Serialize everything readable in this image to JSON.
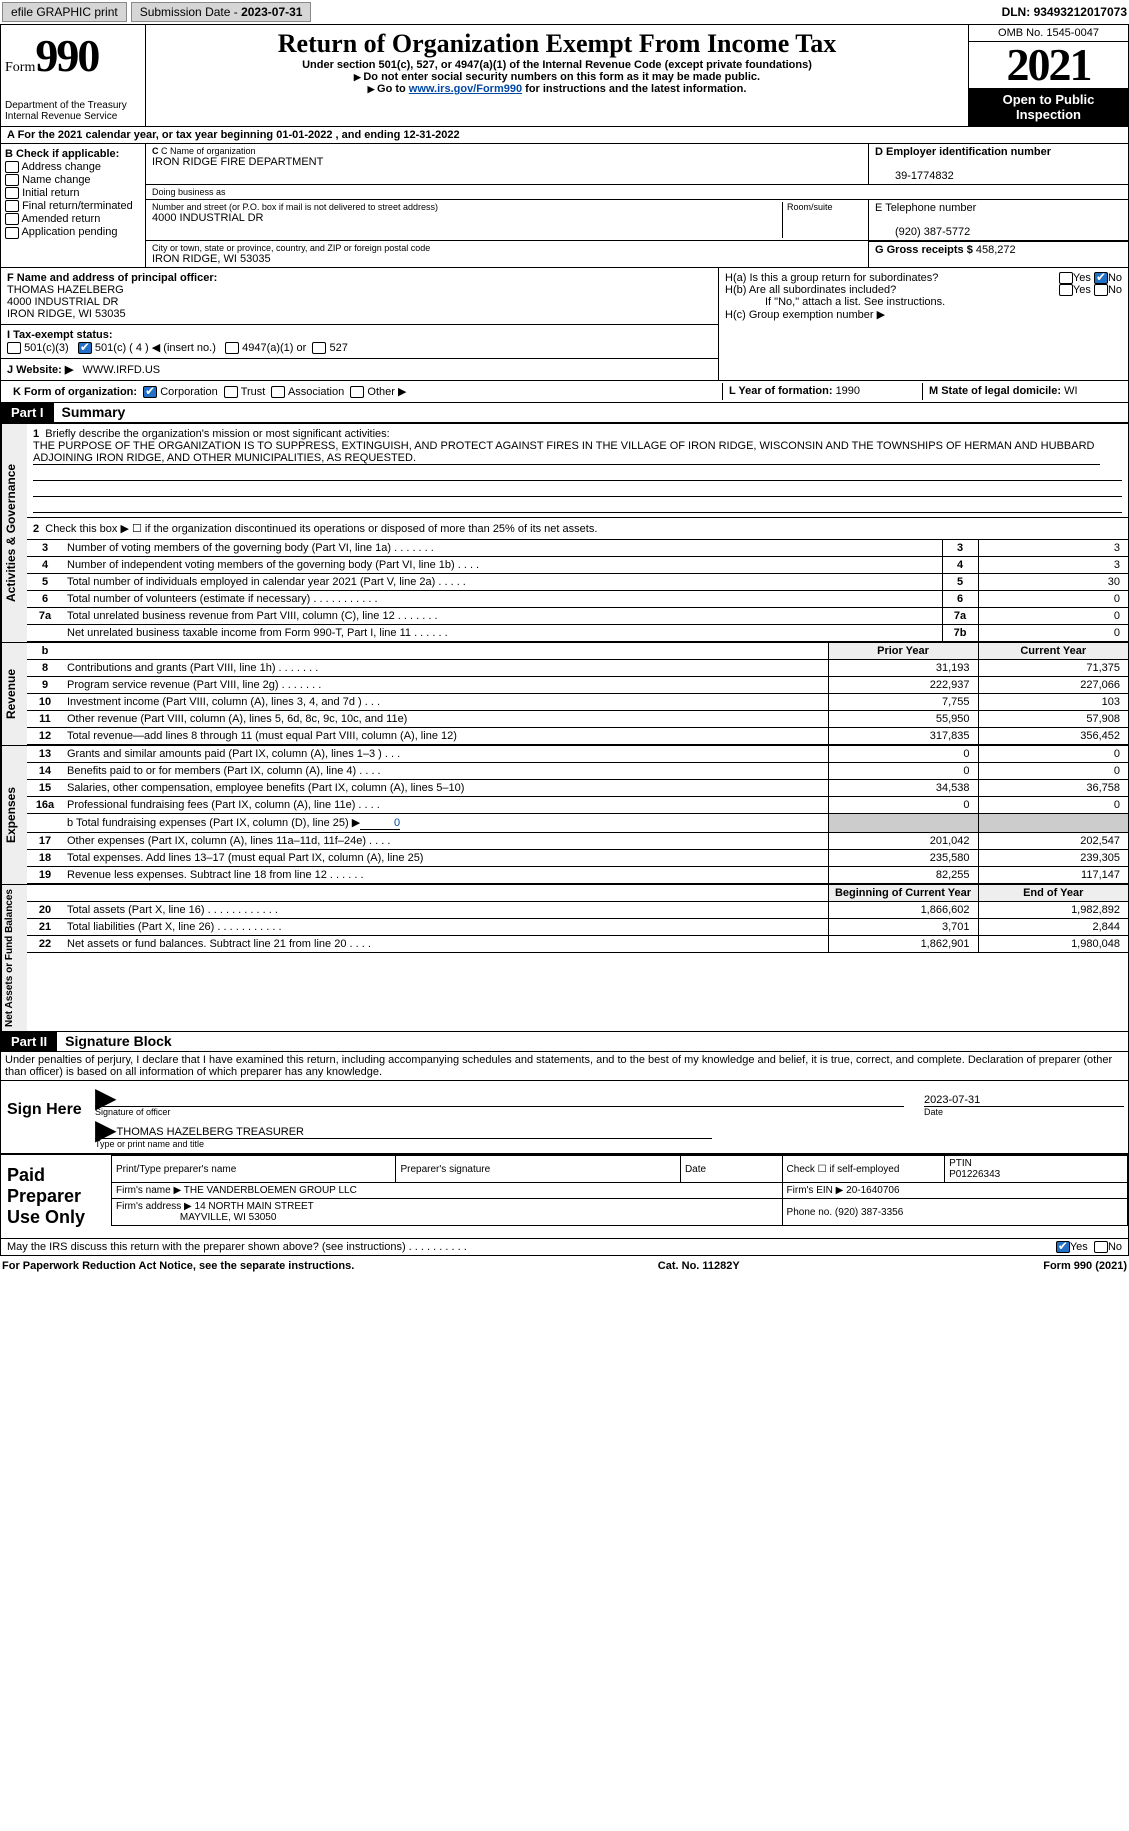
{
  "topbar": {
    "efile": "efile GRAPHIC print",
    "subdate_label": "Submission Date - ",
    "subdate": "2023-07-31",
    "dln_label": "DLN: ",
    "dln": "93493212017073"
  },
  "header": {
    "form_word": "Form",
    "form_num": "990",
    "dept": "Department of the Treasury\nInternal Revenue Service",
    "title": "Return of Organization Exempt From Income Tax",
    "sub1": "Under section 501(c), 527, or 4947(a)(1) of the Internal Revenue Code (except private foundations)",
    "sub2": "Do not enter social security numbers on this form as it may be made public.",
    "sub3_pre": "Go to ",
    "sub3_link": "www.irs.gov/Form990",
    "sub3_post": " for instructions and the latest information.",
    "omb": "OMB No. 1545-0047",
    "year": "2021",
    "open": "Open to Public Inspection"
  },
  "rowA": {
    "text_pre": "A For the 2021 calendar year, or tax year beginning ",
    "begin": "01-01-2022",
    "mid": " , and ending ",
    "end": "12-31-2022"
  },
  "boxB": {
    "label": "B Check if applicable:",
    "items": [
      "Address change",
      "Name change",
      "Initial return",
      "Final return/terminated",
      "Amended return",
      "Application pending"
    ]
  },
  "boxC": {
    "name_lbl": "C Name of organization",
    "name": "IRON RIDGE FIRE DEPARTMENT",
    "dba_lbl": "Doing business as",
    "dba": "",
    "addr_lbl": "Number and street (or P.O. box if mail is not delivered to street address)",
    "room_lbl": "Room/suite",
    "addr": "4000 INDUSTRIAL DR",
    "city_lbl": "City or town, state or province, country, and ZIP or foreign postal code",
    "city": "IRON RIDGE, WI  53035"
  },
  "boxD": {
    "lbl": "D Employer identification number",
    "val": "39-1774832"
  },
  "boxE": {
    "lbl": "E Telephone number",
    "val": "(920) 387-5772"
  },
  "boxG": {
    "lbl": "G Gross receipts $ ",
    "val": "458,272"
  },
  "boxF": {
    "lbl": "F Name and address of principal officer:",
    "name": "THOMAS HAZELBERG",
    "addr1": "4000 INDUSTRIAL DR",
    "addr2": "IRON RIDGE, WI  53035"
  },
  "boxH": {
    "ha": "H(a)  Is this a group return for subordinates?",
    "hb": "H(b)  Are all subordinates included?",
    "hb_note": "If \"No,\" attach a list. See instructions.",
    "hc": "H(c)  Group exemption number ▶",
    "yes": "Yes",
    "no": "No"
  },
  "boxI": {
    "lbl": "I   Tax-exempt status:",
    "c3": "501(c)(3)",
    "c": "501(c) ( 4 ) ◀ (insert no.)",
    "a1": "4947(a)(1) or",
    "s527": "527"
  },
  "boxJ": {
    "lbl": "J   Website: ▶",
    "val": "WWW.IRFD.US"
  },
  "boxK": {
    "lbl": "K Form of organization:",
    "corp": "Corporation",
    "trust": "Trust",
    "assoc": "Association",
    "other": "Other ▶"
  },
  "boxL": {
    "lbl": "L Year of formation: ",
    "val": "1990"
  },
  "boxM": {
    "lbl": "M State of legal domicile: ",
    "val": "WI"
  },
  "part1": {
    "hdr": "Part I",
    "title": "Summary"
  },
  "summary": {
    "tab1": "Activities & Governance",
    "tab2": "Revenue",
    "tab3": "Expenses",
    "tab4": "Net Assets or Fund Balances",
    "q1": "Briefly describe the organization's mission or most significant activities:",
    "mission": "THE PURPOSE OF THE ORGANIZATION IS TO SUPPRESS, EXTINGUISH, AND PROTECT AGAINST FIRES IN THE VILLAGE OF IRON RIDGE, WISCONSIN AND THE TOWNSHIPS OF HERMAN AND HUBBARD ADJOINING IRON RIDGE, AND OTHER MUNICIPALITIES, AS REQUESTED.",
    "q2": "Check this box ▶ ☐ if the organization discontinued its operations or disposed of more than 25% of its net assets.",
    "rows_ag": [
      {
        "n": "3",
        "t": "Number of voting members of the governing body (Part VI, line 1a)  .    .    .    .    .    .    .",
        "bn": "3",
        "v": "3"
      },
      {
        "n": "4",
        "t": "Number of independent voting members of the governing body (Part VI, line 1b)  .    .    .    .",
        "bn": "4",
        "v": "3"
      },
      {
        "n": "5",
        "t": "Total number of individuals employed in calendar year 2021 (Part V, line 2a)  .    .    .    .    .",
        "bn": "5",
        "v": "30"
      },
      {
        "n": "6",
        "t": "Total number of volunteers (estimate if necessary)   .    .    .    .    .    .    .    .    .    .    .",
        "bn": "6",
        "v": "0"
      },
      {
        "n": "7a",
        "t": "Total unrelated business revenue from Part VIII, column (C), line 12   .    .    .    .    .    .    .",
        "bn": "7a",
        "v": "0"
      },
      {
        "n": "",
        "t": "Net unrelated business taxable income from Form 990-T, Part I, line 11  .    .    .    .    .    .",
        "bn": "7b",
        "v": "0"
      }
    ],
    "hdr_prior": "Prior Year",
    "hdr_curr": "Current Year",
    "rows_rev": [
      {
        "n": "8",
        "t": "Contributions and grants (Part VIII, line 1h)   .    .    .    .    .    .    .",
        "p": "31,193",
        "c": "71,375"
      },
      {
        "n": "9",
        "t": "Program service revenue (Part VIII, line 2g)   .    .    .    .    .    .    .",
        "p": "222,937",
        "c": "227,066"
      },
      {
        "n": "10",
        "t": "Investment income (Part VIII, column (A), lines 3, 4, and 7d )   .    .    .",
        "p": "7,755",
        "c": "103"
      },
      {
        "n": "11",
        "t": "Other revenue (Part VIII, column (A), lines 5, 6d, 8c, 9c, 10c, and 11e)",
        "p": "55,950",
        "c": "57,908"
      },
      {
        "n": "12",
        "t": "Total revenue—add lines 8 through 11 (must equal Part VIII, column (A), line 12)",
        "p": "317,835",
        "c": "356,452"
      }
    ],
    "rows_exp": [
      {
        "n": "13",
        "t": "Grants and similar amounts paid (Part IX, column (A), lines 1–3 )  .    .    .",
        "p": "0",
        "c": "0"
      },
      {
        "n": "14",
        "t": "Benefits paid to or for members (Part IX, column (A), line 4)  .    .    .    .",
        "p": "0",
        "c": "0"
      },
      {
        "n": "15",
        "t": "Salaries, other compensation, employee benefits (Part IX, column (A), lines 5–10)",
        "p": "34,538",
        "c": "36,758"
      },
      {
        "n": "16a",
        "t": "Professional fundraising fees (Part IX, column (A), line 11e)  .    .    .    .",
        "p": "0",
        "c": "0"
      }
    ],
    "row16b_pre": "b  Total fundraising expenses (Part IX, column (D), line 25) ▶",
    "row16b_val": "0",
    "rows_exp2": [
      {
        "n": "17",
        "t": "Other expenses (Part IX, column (A), lines 11a–11d, 11f–24e)  .    .    .    .",
        "p": "201,042",
        "c": "202,547"
      },
      {
        "n": "18",
        "t": "Total expenses. Add lines 13–17 (must equal Part IX, column (A), line 25)",
        "p": "235,580",
        "c": "239,305"
      },
      {
        "n": "19",
        "t": "Revenue less expenses. Subtract line 18 from line 12  .    .    .    .    .    .",
        "p": "82,255",
        "c": "117,147"
      }
    ],
    "hdr_begin": "Beginning of Current Year",
    "hdr_end": "End of Year",
    "rows_net": [
      {
        "n": "20",
        "t": "Total assets (Part X, line 16)  .    .    .    .    .    .    .    .    .    .    .    .",
        "p": "1,866,602",
        "c": "1,982,892"
      },
      {
        "n": "21",
        "t": "Total liabilities (Part X, line 26)  .    .    .    .    .    .    .    .    .    .    .",
        "p": "3,701",
        "c": "2,844"
      },
      {
        "n": "22",
        "t": "Net assets or fund balances. Subtract line 21 from line 20  .    .    .    .",
        "p": "1,862,901",
        "c": "1,980,048"
      }
    ]
  },
  "part2": {
    "hdr": "Part II",
    "title": "Signature Block"
  },
  "sig": {
    "penalty": "Under penalties of perjury, I declare that I have examined this return, including accompanying schedules and statements, and to the best of my knowledge and belief, it is true, correct, and complete. Declaration of preparer (other than officer) is based on all information of which preparer has any knowledge.",
    "sign_here": "Sign Here",
    "sig_officer": "Signature of officer",
    "date": "2023-07-31",
    "date_lbl": "Date",
    "name": "THOMAS HAZELBERG  TREASURER",
    "name_lbl": "Type or print name and title"
  },
  "prep": {
    "label": "Paid Preparer Use Only",
    "h1": "Print/Type preparer's name",
    "h2": "Preparer's signature",
    "h3": "Date",
    "h4_pre": "Check ☐ if self-employed",
    "h5": "PTIN",
    "ptin": "P01226343",
    "firm_name_lbl": "Firm's name    ▶",
    "firm_name": "THE VANDERBLOEMEN GROUP LLC",
    "firm_ein_lbl": "Firm's EIN ▶",
    "firm_ein": "20-1640706",
    "firm_addr_lbl": "Firm's address ▶",
    "firm_addr1": "14 NORTH MAIN STREET",
    "firm_addr2": "MAYVILLE, WI  53050",
    "phone_lbl": "Phone no. ",
    "phone": "(920) 387-3356"
  },
  "discuss": {
    "q": "May the IRS discuss this return with the preparer shown above? (see instructions)   .    .    .    .    .    .    .    .    .    .",
    "yes": "Yes",
    "no": "No"
  },
  "footer": {
    "left": "For Paperwork Reduction Act Notice, see the separate instructions.",
    "mid": "Cat. No. 11282Y",
    "right": "Form 990 (2021)"
  }
}
